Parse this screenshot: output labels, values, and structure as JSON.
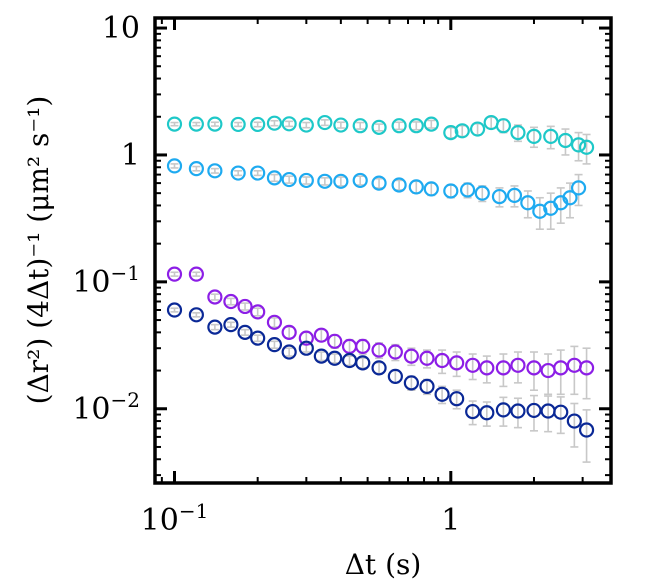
{
  "chart_data": {
    "type": "scatter",
    "xscale": "log",
    "yscale": "log",
    "xlim": [
      0.085,
      3.8
    ],
    "ylim": [
      0.0026,
      12
    ],
    "xticks": [
      {
        "value": 0.1,
        "base": "10",
        "exp": "−1"
      },
      {
        "value": 1,
        "base": "1",
        "exp": ""
      }
    ],
    "yticks": [
      {
        "value": 0.01,
        "base": "10",
        "exp": "−2"
      },
      {
        "value": 0.1,
        "base": "10",
        "exp": "−1"
      },
      {
        "value": 1,
        "base": "1",
        "exp": ""
      },
      {
        "value": 10,
        "base": "10",
        "exp": ""
      }
    ],
    "xlabel": "Δt (s)",
    "ylabel": "(Δr²) (4Δt)⁻¹ (μm² s⁻¹)",
    "grid": false,
    "legend": "none",
    "errorbar_color": "#c8c8c8",
    "series": [
      {
        "color": "#1ec8c8",
        "x": [
          0.1,
          0.12,
          0.14,
          0.17,
          0.2,
          0.23,
          0.26,
          0.3,
          0.35,
          0.4,
          0.47,
          0.55,
          0.65,
          0.75,
          0.85,
          1.0,
          1.1,
          1.25,
          1.4,
          1.55,
          1.75,
          2.0,
          2.3,
          2.6,
          2.9,
          3.1
        ],
        "y": [
          1.75,
          1.75,
          1.75,
          1.74,
          1.74,
          1.78,
          1.76,
          1.72,
          1.8,
          1.72,
          1.7,
          1.65,
          1.7,
          1.7,
          1.75,
          1.5,
          1.55,
          1.6,
          1.8,
          1.7,
          1.5,
          1.4,
          1.4,
          1.3,
          1.2,
          1.15
        ],
        "err": [
          0.05,
          0.05,
          0.06,
          0.06,
          0.07,
          0.08,
          0.08,
          0.08,
          0.09,
          0.09,
          0.1,
          0.1,
          0.11,
          0.12,
          0.12,
          0.14,
          0.15,
          0.16,
          0.18,
          0.2,
          0.22,
          0.25,
          0.28,
          0.3,
          0.3,
          0.3
        ]
      },
      {
        "color": "#1eaaf0",
        "x": [
          0.1,
          0.12,
          0.14,
          0.17,
          0.2,
          0.23,
          0.26,
          0.3,
          0.35,
          0.4,
          0.47,
          0.55,
          0.65,
          0.75,
          0.85,
          1.0,
          1.15,
          1.3,
          1.5,
          1.7,
          1.9,
          2.1,
          2.3,
          2.5,
          2.7,
          2.9
        ],
        "y": [
          0.82,
          0.78,
          0.75,
          0.72,
          0.72,
          0.66,
          0.64,
          0.63,
          0.62,
          0.62,
          0.63,
          0.6,
          0.58,
          0.56,
          0.54,
          0.52,
          0.53,
          0.5,
          0.47,
          0.48,
          0.42,
          0.36,
          0.38,
          0.42,
          0.46,
          0.55
        ],
        "err": [
          0.03,
          0.03,
          0.03,
          0.03,
          0.03,
          0.04,
          0.04,
          0.04,
          0.04,
          0.05,
          0.05,
          0.05,
          0.05,
          0.06,
          0.06,
          0.06,
          0.07,
          0.07,
          0.08,
          0.09,
          0.1,
          0.1,
          0.12,
          0.13,
          0.14,
          0.15
        ]
      },
      {
        "color": "#8c1ee6",
        "x": [
          0.1,
          0.12,
          0.14,
          0.16,
          0.18,
          0.2,
          0.23,
          0.26,
          0.3,
          0.34,
          0.38,
          0.43,
          0.48,
          0.55,
          0.63,
          0.72,
          0.82,
          0.93,
          1.05,
          1.2,
          1.35,
          1.55,
          1.75,
          2.0,
          2.25,
          2.5,
          2.8,
          3.1
        ],
        "y": [
          0.115,
          0.115,
          0.076,
          0.07,
          0.064,
          0.058,
          0.048,
          0.04,
          0.036,
          0.038,
          0.034,
          0.031,
          0.031,
          0.029,
          0.028,
          0.026,
          0.025,
          0.024,
          0.023,
          0.022,
          0.021,
          0.021,
          0.022,
          0.021,
          0.02,
          0.021,
          0.022,
          0.021
        ],
        "err": [
          0.004,
          0.004,
          0.004,
          0.004,
          0.004,
          0.004,
          0.004,
          0.004,
          0.004,
          0.004,
          0.004,
          0.004,
          0.004,
          0.004,
          0.004,
          0.004,
          0.004,
          0.005,
          0.005,
          0.005,
          0.005,
          0.006,
          0.006,
          0.007,
          0.007,
          0.008,
          0.009,
          0.009
        ]
      },
      {
        "color": "#0a2896",
        "x": [
          0.1,
          0.12,
          0.14,
          0.16,
          0.18,
          0.2,
          0.23,
          0.26,
          0.3,
          0.34,
          0.38,
          0.43,
          0.48,
          0.55,
          0.63,
          0.72,
          0.82,
          0.93,
          1.05,
          1.2,
          1.35,
          1.55,
          1.75,
          2.0,
          2.25,
          2.5,
          2.8,
          3.1
        ],
        "y": [
          0.06,
          0.055,
          0.044,
          0.046,
          0.04,
          0.036,
          0.032,
          0.028,
          0.03,
          0.026,
          0.025,
          0.024,
          0.023,
          0.021,
          0.018,
          0.016,
          0.015,
          0.013,
          0.012,
          0.0095,
          0.0093,
          0.0098,
          0.0096,
          0.0097,
          0.0096,
          0.0094,
          0.008,
          0.0068
        ],
        "err": [
          0.002,
          0.002,
          0.002,
          0.002,
          0.002,
          0.002,
          0.002,
          0.002,
          0.002,
          0.002,
          0.002,
          0.002,
          0.002,
          0.002,
          0.002,
          0.002,
          0.002,
          0.002,
          0.002,
          0.002,
          0.002,
          0.0025,
          0.0025,
          0.003,
          0.003,
          0.003,
          0.003,
          0.003
        ]
      }
    ]
  }
}
